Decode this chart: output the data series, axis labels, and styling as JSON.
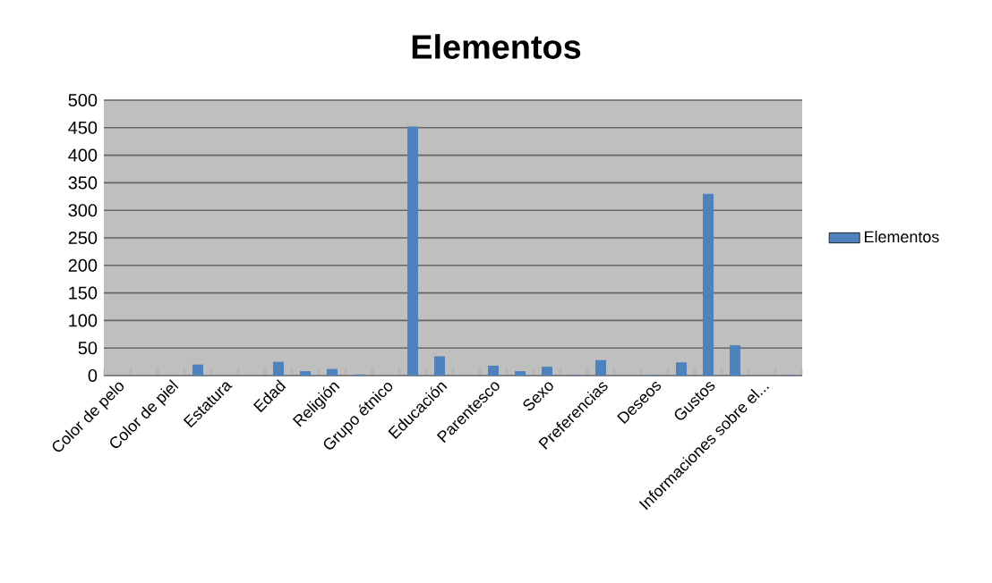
{
  "chart_data": {
    "type": "bar",
    "title": "Elementos",
    "categories": [
      "Color de pelo",
      null,
      "Color de piel",
      null,
      "Estatura",
      null,
      "Edad",
      null,
      "Religión",
      null,
      "Grupo étnico",
      null,
      "Educación",
      null,
      "Parentesco",
      null,
      "Sexo",
      null,
      "Preferencias",
      null,
      "Deseos",
      null,
      "Gustos",
      null,
      "Informaciones sobre el...",
      null
    ],
    "series": [
      {
        "name": "Elementos",
        "color": "#4f81bd",
        "values": [
          0,
          0,
          0,
          20,
          0,
          0,
          25,
          8,
          12,
          2,
          0,
          452,
          35,
          0,
          18,
          8,
          16,
          1,
          28,
          0,
          1,
          24,
          330,
          55,
          0,
          1
        ]
      }
    ],
    "ylim": [
      0,
      500
    ],
    "yticks": [
      0,
      50,
      100,
      150,
      200,
      250,
      300,
      350,
      400,
      450,
      500
    ],
    "grid": "y",
    "legend": "right"
  }
}
